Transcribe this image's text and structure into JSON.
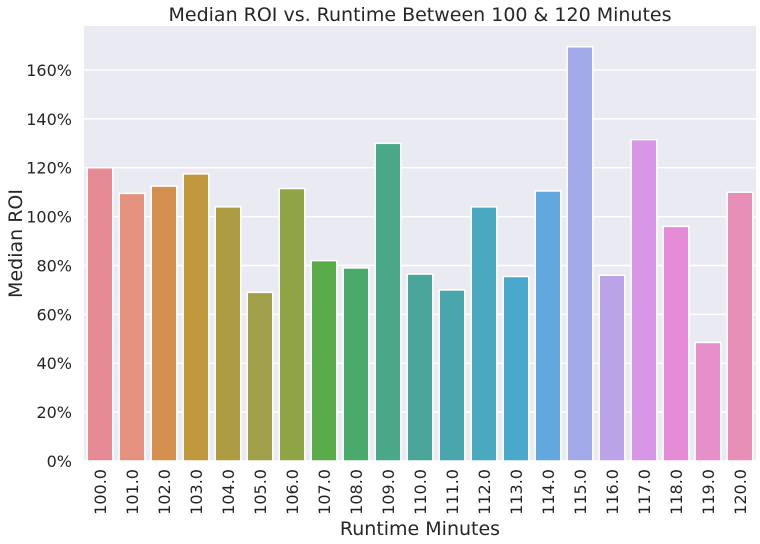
{
  "chart_data": {
    "type": "bar",
    "title": "Median ROI vs. Runtime Between 100 & 120 Minutes",
    "xlabel": "Runtime Minutes",
    "ylabel": "Median ROI",
    "categories": [
      "100.0",
      "101.0",
      "102.0",
      "103.0",
      "104.0",
      "105.0",
      "106.0",
      "107.0",
      "108.0",
      "109.0",
      "110.0",
      "111.0",
      "112.0",
      "113.0",
      "114.0",
      "115.0",
      "116.0",
      "117.0",
      "118.0",
      "119.0",
      "120.0"
    ],
    "values": [
      120,
      109.5,
      112.5,
      117.5,
      104,
      69,
      111.5,
      82,
      79,
      130,
      76.5,
      70,
      104,
      75.5,
      110.5,
      169.5,
      76,
      131.5,
      96,
      48.5,
      110
    ],
    "colors": [
      "#e68a96",
      "#e4927f",
      "#d58f4e",
      "#c1993d",
      "#ad9c42",
      "#a1a04a",
      "#8fa445",
      "#5aab4a",
      "#4aaa6b",
      "#4aa888",
      "#4aa69b",
      "#4aa6ad",
      "#4aa8bf",
      "#4aa8cc",
      "#62a7de",
      "#a3aae9",
      "#bba3e8",
      "#d896e6",
      "#e68bd6",
      "#e68fc9",
      "#e78fb7"
    ],
    "y_ticks": [
      0,
      20,
      40,
      60,
      80,
      100,
      120,
      140,
      160
    ],
    "y_tick_format": "%",
    "ylim": [
      0,
      178
    ],
    "grid": true,
    "background": "#eaeaf2"
  }
}
